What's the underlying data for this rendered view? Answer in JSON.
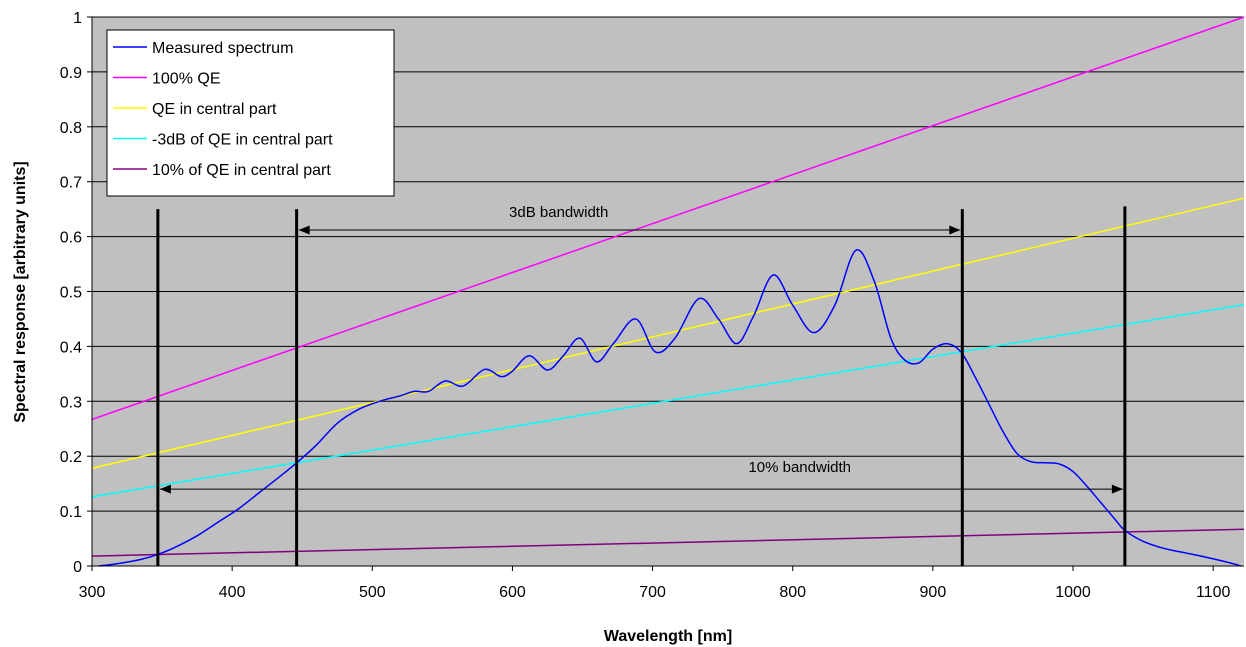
{
  "chart_data": {
    "type": "line",
    "xlabel": "Wavelength [nm]",
    "ylabel": "Spectral response [arbitrary units]",
    "xlim": [
      300,
      1122
    ],
    "ylim": [
      0,
      1
    ],
    "xticks": [
      300,
      400,
      500,
      600,
      700,
      800,
      900,
      1000,
      1100
    ],
    "yticks": [
      0,
      0.1,
      0.2,
      0.3,
      0.4,
      0.5,
      0.6,
      0.7,
      0.8,
      0.9,
      1
    ],
    "ytick_labels": [
      "0",
      "0.1",
      "0.2",
      "0.3",
      "0.4",
      "0.5",
      "0.6",
      "0.7",
      "0.8",
      "0.9",
      "1"
    ],
    "grid": "horizontal",
    "plot_background": "#C0C0C0",
    "legend_position": "top-left",
    "series": [
      {
        "name": "Measured spectrum",
        "color": "#0000FF",
        "x": [
          305,
          320,
          335,
          348,
          360,
          375,
          390,
          405,
          420,
          435,
          447,
          460,
          475,
          490,
          505,
          520,
          530,
          540,
          552,
          565,
          580,
          592,
          600,
          612,
          625,
          636,
          648,
          660,
          672,
          688,
          702,
          716,
          733,
          747,
          760,
          772,
          786,
          800,
          815,
          830,
          845,
          858,
          870,
          880,
          890,
          900,
          910,
          920,
          930,
          940,
          950,
          960,
          970,
          980,
          990,
          1000,
          1010,
          1020,
          1030,
          1037,
          1050,
          1065,
          1080,
          1095,
          1110,
          1120
        ],
        "y": [
          0.0,
          0.005,
          0.012,
          0.022,
          0.035,
          0.055,
          0.08,
          0.105,
          0.135,
          0.165,
          0.19,
          0.22,
          0.26,
          0.285,
          0.3,
          0.31,
          0.318,
          0.318,
          0.337,
          0.328,
          0.358,
          0.345,
          0.355,
          0.383,
          0.357,
          0.382,
          0.415,
          0.372,
          0.405,
          0.45,
          0.39,
          0.415,
          0.487,
          0.45,
          0.405,
          0.455,
          0.53,
          0.475,
          0.425,
          0.475,
          0.575,
          0.52,
          0.415,
          0.375,
          0.37,
          0.395,
          0.405,
          0.39,
          0.345,
          0.295,
          0.245,
          0.205,
          0.19,
          0.188,
          0.186,
          0.172,
          0.145,
          0.115,
          0.085,
          0.065,
          0.045,
          0.032,
          0.024,
          0.016,
          0.007,
          0.0
        ]
      },
      {
        "name": "100% QE",
        "color": "#FF00FF",
        "x": [
          300,
          1122
        ],
        "y": [
          0.267,
          1.0
        ]
      },
      {
        "name": "QE in central part",
        "color": "#FFFF00",
        "x": [
          300,
          1122
        ],
        "y": [
          0.178,
          0.67
        ]
      },
      {
        "name": "-3dB of QE in central part",
        "color": "#00FFFF",
        "x": [
          300,
          1122
        ],
        "y": [
          0.126,
          0.476
        ]
      },
      {
        "name": "10% of QE in central part",
        "color": "#800080",
        "x": [
          300,
          1122
        ],
        "y": [
          0.018,
          0.067
        ]
      }
    ],
    "markers": [
      {
        "x": 347,
        "y_top": 0.65
      },
      {
        "x": 446,
        "y_top": 0.65
      },
      {
        "x": 921,
        "y_top": 0.65
      },
      {
        "x": 1037,
        "y_top": 0.655
      }
    ],
    "annotations": [
      {
        "text": "3dB bandwidth",
        "x_from": 446,
        "x_to": 921,
        "y": 0.612,
        "label_x": 633,
        "label_y": 0.645
      },
      {
        "text": "10% bandwidth",
        "x_from": 347,
        "x_to": 1037,
        "y": 0.14,
        "label_x": 805,
        "label_y": 0.18
      }
    ]
  }
}
